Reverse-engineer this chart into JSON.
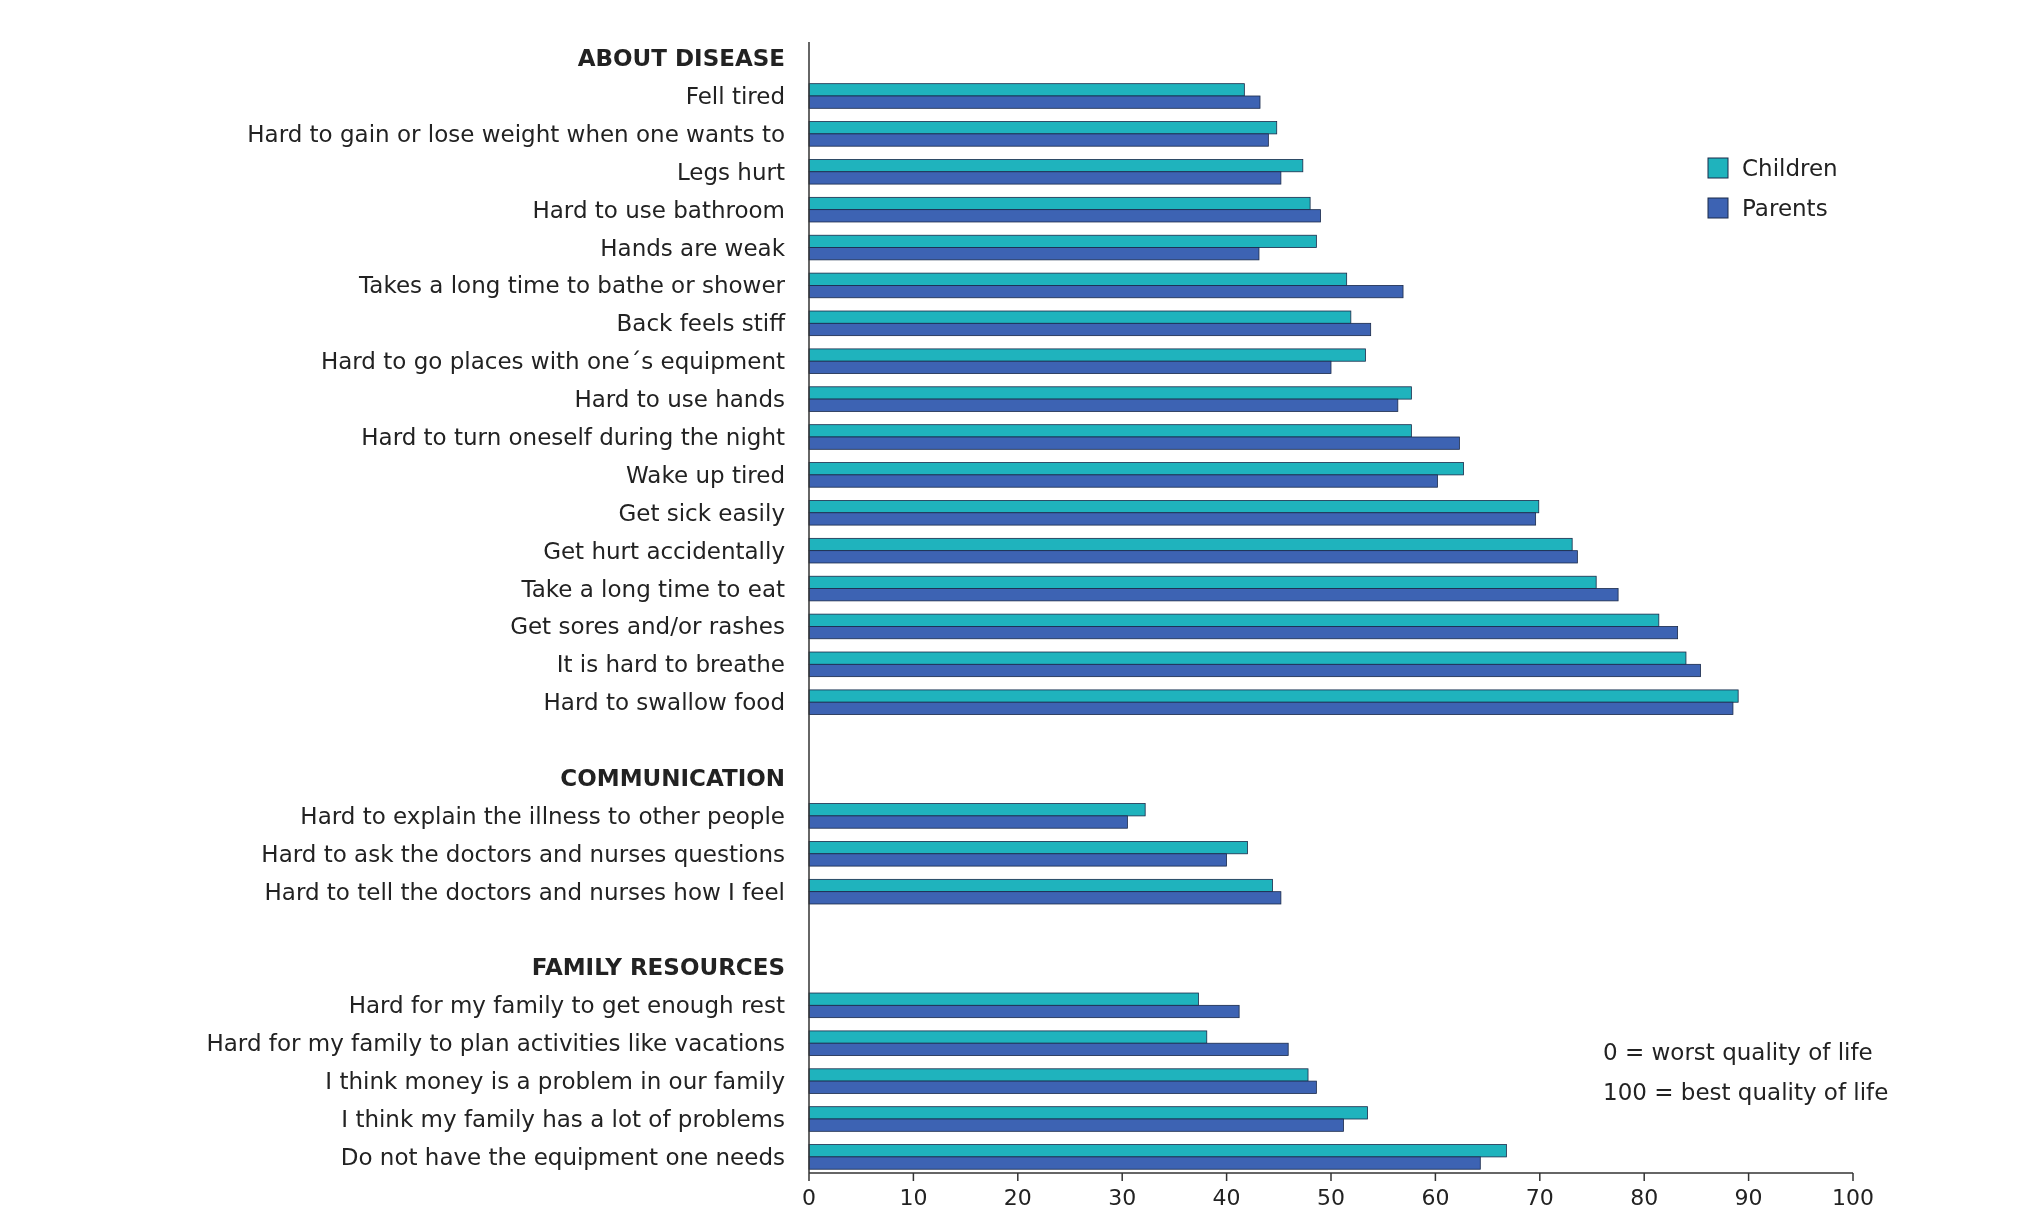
{
  "chart_data": {
    "type": "bar",
    "orientation": "horizontal",
    "categories": [
      "ABOUT DISEASE",
      "Fell tired",
      "Hard to gain or lose weight when one wants to",
      "Legs hurt",
      "Hard to use bathroom",
      "Hands are weak",
      "Takes a long time to bathe or shower",
      "Back feels stiff",
      "Hard to go places with one´s equipment",
      "Hard to use hands",
      "Hard to turn oneself during the night",
      "Wake up tired",
      "Get sick easily",
      "Get hurt accidentally",
      "Take a long time to eat",
      "Get sores and/or rashes",
      "It is hard to breathe",
      "Hard to swallow food",
      null,
      "COMMUNICATION",
      "Hard to explain the illness to other people",
      "Hard to ask the doctors and nurses questions",
      "Hard to tell the doctors and nurses how I feel",
      null,
      "FAMILY RESOURCES",
      "Hard for my family to get enough rest",
      "Hard for my family to plan activities like vacations",
      "I think money is a problem in our family",
      "I think my family has a lot of problems",
      "Do not have the equipment one needs"
    ],
    "series": [
      {
        "name": "Children",
        "color": "#1fb3bd",
        "values": [
          null,
          41.7,
          44.8,
          47.3,
          48.0,
          48.6,
          51.5,
          51.9,
          53.3,
          57.7,
          57.7,
          62.7,
          69.9,
          73.1,
          75.4,
          81.4,
          84.0,
          89.0,
          null,
          null,
          32.2,
          42.0,
          44.4,
          null,
          null,
          37.3,
          38.1,
          47.8,
          53.5,
          66.8
        ]
      },
      {
        "name": "Parents",
        "color": "#3d63b3",
        "values": [
          null,
          43.2,
          44.0,
          45.2,
          49.0,
          43.1,
          56.9,
          53.8,
          50.0,
          56.4,
          62.3,
          60.2,
          69.6,
          73.6,
          77.5,
          83.2,
          85.4,
          88.5,
          null,
          null,
          30.5,
          40.0,
          45.2,
          null,
          null,
          41.2,
          45.9,
          48.6,
          51.2,
          64.3
        ]
      }
    ],
    "xlim": [
      0,
      100
    ],
    "xticks": [
      0,
      10,
      20,
      30,
      40,
      50,
      60,
      70,
      80,
      90,
      100
    ],
    "legend": "top right",
    "grid": false,
    "annotations": [
      "0 = worst quality of life",
      "100 = best quality of life"
    ]
  }
}
